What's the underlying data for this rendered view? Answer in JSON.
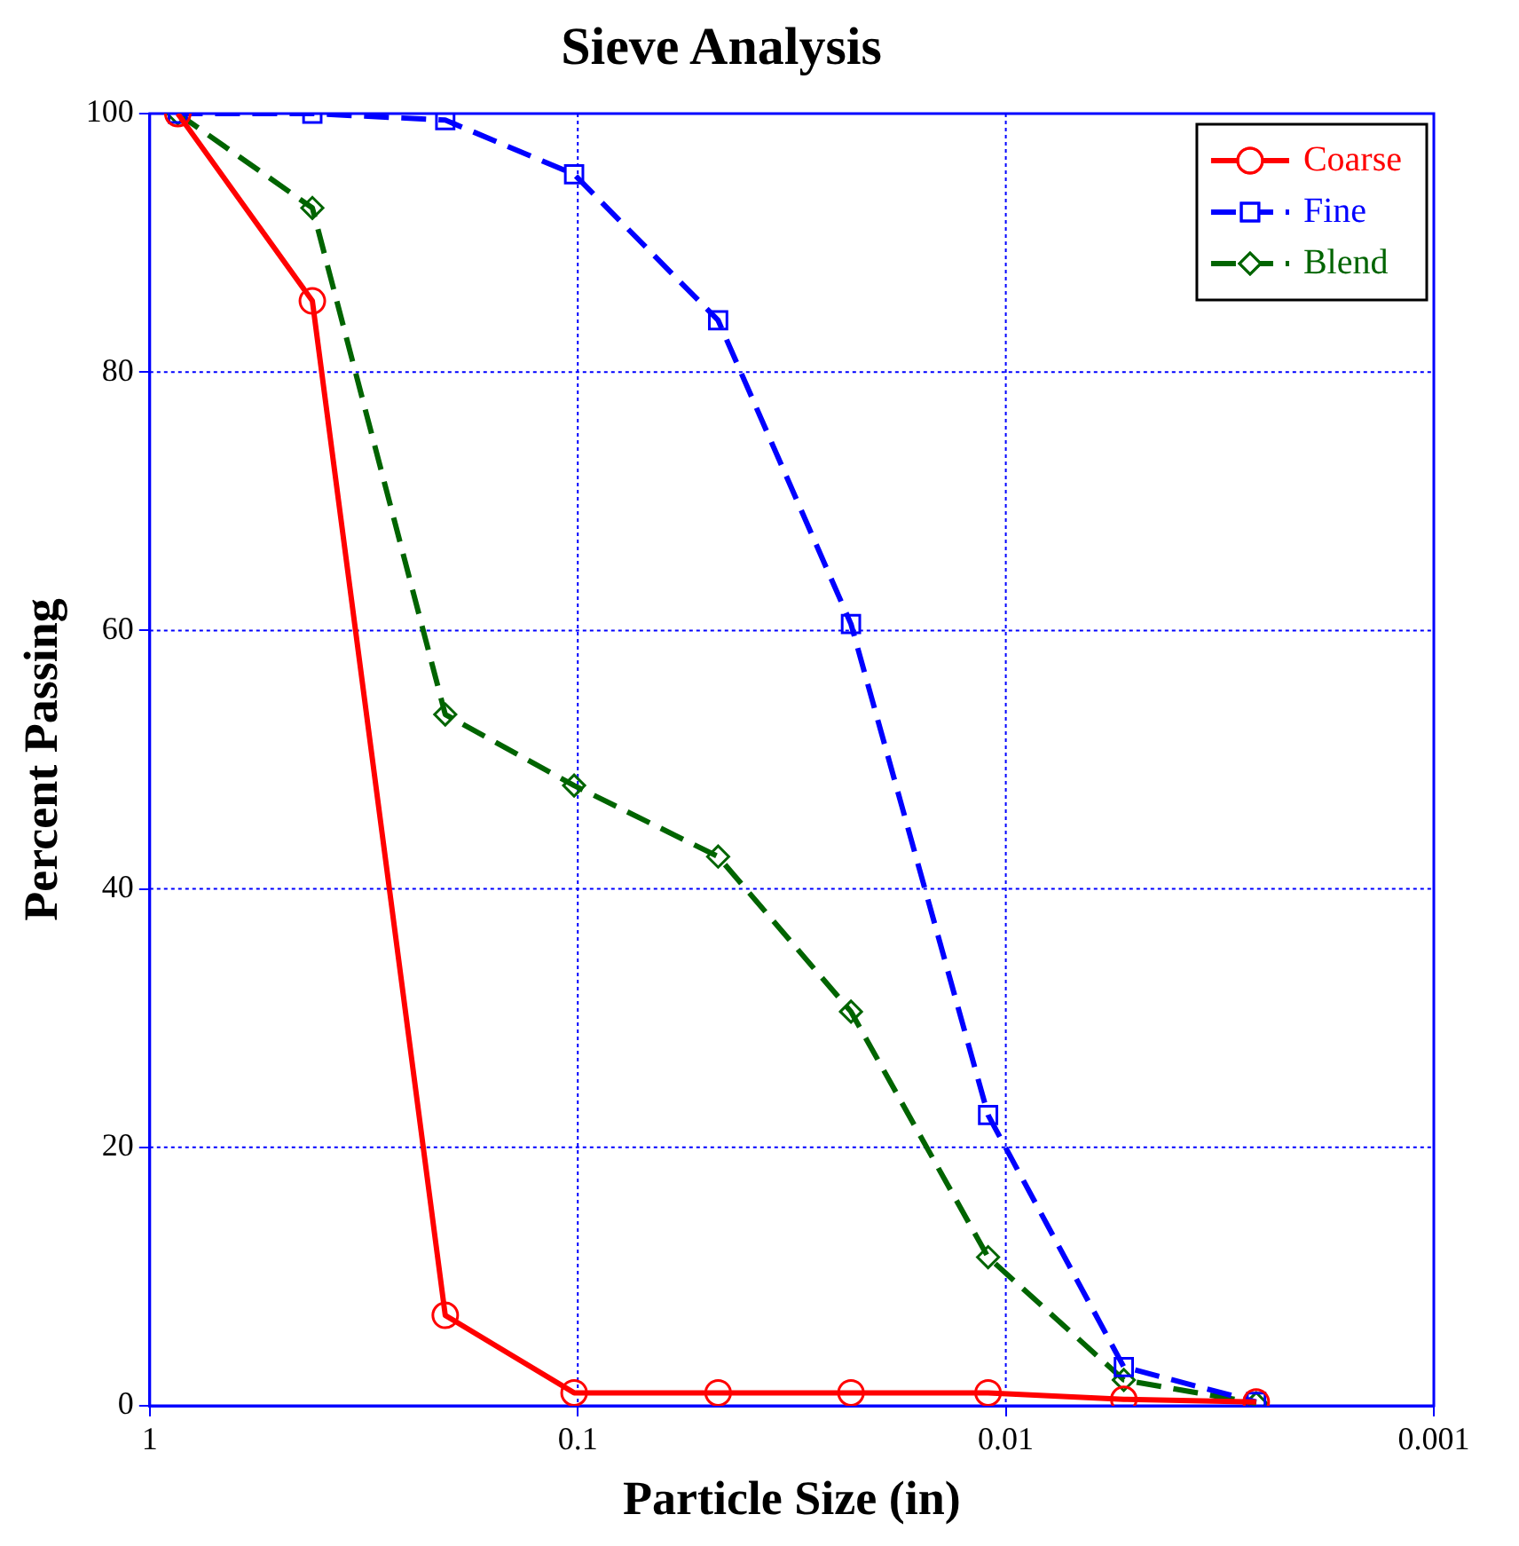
{
  "chart_data": {
    "type": "line",
    "title": "Sieve Analysis",
    "xlabel": "Particle Size (in)",
    "ylabel": "Percent Passing",
    "x": [
      0.86,
      0.417,
      0.204,
      0.102,
      0.047,
      0.023,
      0.011,
      0.0053,
      0.0026
    ],
    "series": [
      {
        "name": "Coarse",
        "color": "#ff0000",
        "marker": "circle",
        "line_style": "solid",
        "values": [
          100,
          85.5,
          7,
          1,
          1,
          1,
          1,
          0.5,
          0.3
        ]
      },
      {
        "name": "Fine",
        "color": "#0000ff",
        "marker": "square",
        "line_style": "dashed",
        "values": [
          100,
          100,
          99.5,
          95.3,
          84,
          60.5,
          22.5,
          3,
          0.3
        ]
      },
      {
        "name": "Blend",
        "color": "#006400",
        "marker": "diamond",
        "line_style": "dashed",
        "values": [
          100,
          92.7,
          53.5,
          48,
          42.5,
          30.5,
          11.5,
          2,
          0.2
        ]
      }
    ],
    "log": "x",
    "xlim": [
      1,
      0.001
    ],
    "xticks": [
      1,
      0.1,
      0.01,
      0.001
    ],
    "ylim": [
      0,
      100
    ],
    "yticks": [
      0,
      20,
      40,
      60,
      80,
      100
    ],
    "grid": true,
    "legend": "top right"
  }
}
